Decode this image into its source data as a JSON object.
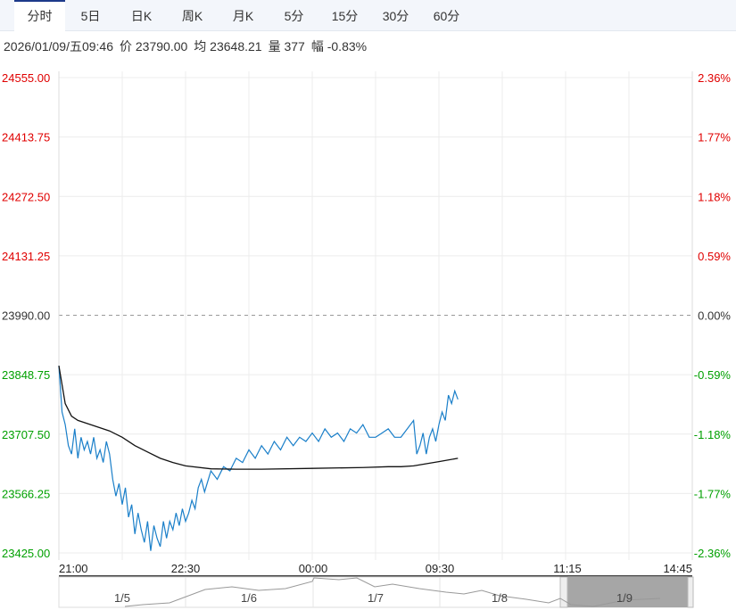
{
  "tabs": [
    "分时",
    "5日",
    "日K",
    "周K",
    "月K",
    "5分",
    "15分",
    "30分",
    "60分"
  ],
  "active_tab": 0,
  "info": {
    "datetime": "2026/01/09/五09:46",
    "price": "价 23790.00",
    "avg": "均 23648.21",
    "volume": "量 377",
    "change": "幅 -0.83%"
  },
  "colors": {
    "up": "#e00000",
    "down": "#00a000",
    "flat": "#333333",
    "price_line": "#1a7fc9",
    "avg_line": "#111111"
  },
  "chart_data": {
    "type": "line",
    "ylim": [
      23425,
      24555
    ],
    "base": 23990,
    "y_ticks": [
      "24555.00",
      "24413.75",
      "24272.50",
      "24131.25",
      "23990.00",
      "23848.75",
      "23707.50",
      "23566.25",
      "23425.00"
    ],
    "pct_ticks": [
      "2.36%",
      "1.77%",
      "1.18%",
      "0.59%",
      "0.00%",
      "-0.59%",
      "-1.18%",
      "-1.77%",
      "-2.36%"
    ],
    "x_ticks": [
      "21:00",
      "22:30",
      "00:00",
      "09:30",
      "11:15",
      "14:45"
    ],
    "x_range": [
      0,
      100
    ],
    "series": [
      {
        "name": "price",
        "x": [
          0,
          0.5,
          1,
          1.5,
          2,
          2.5,
          3,
          3.5,
          4,
          4.5,
          5,
          5.5,
          6,
          6.5,
          7,
          7.5,
          8,
          8.5,
          9,
          9.5,
          10,
          10.5,
          11,
          11.5,
          12,
          12.5,
          13,
          13.5,
          14,
          14.5,
          15,
          15.5,
          16,
          16.5,
          17,
          17.5,
          18,
          18.5,
          19,
          19.5,
          20,
          20.5,
          21,
          21.5,
          22,
          22.5,
          23,
          24,
          25,
          26,
          27,
          28,
          29,
          30,
          31,
          32,
          33,
          34,
          35,
          36,
          37,
          38,
          39,
          40,
          41,
          42,
          43,
          44,
          45,
          46,
          47,
          48,
          49,
          50,
          51,
          52,
          53,
          54,
          55,
          56,
          56.5,
          57,
          57.5,
          58,
          58.5,
          59,
          59.5,
          60,
          60.5,
          61,
          61.5,
          62,
          62.5,
          63
        ],
        "values": [
          23870,
          23760,
          23730,
          23680,
          23660,
          23720,
          23650,
          23700,
          23670,
          23690,
          23660,
          23700,
          23650,
          23670,
          23640,
          23690,
          23660,
          23600,
          23560,
          23590,
          23540,
          23580,
          23510,
          23540,
          23470,
          23520,
          23480,
          23450,
          23500,
          23430,
          23490,
          23460,
          23440,
          23500,
          23460,
          23500,
          23480,
          23520,
          23490,
          23530,
          23500,
          23520,
          23550,
          23530,
          23580,
          23600,
          23570,
          23620,
          23600,
          23630,
          23620,
          23650,
          23640,
          23670,
          23650,
          23680,
          23660,
          23690,
          23670,
          23700,
          23680,
          23700,
          23690,
          23710,
          23690,
          23720,
          23700,
          23710,
          23690,
          23720,
          23710,
          23730,
          23700,
          23700,
          23710,
          23720,
          23700,
          23700,
          23720,
          23740,
          23660,
          23680,
          23710,
          23660,
          23700,
          23720,
          23690,
          23730,
          23760,
          23740,
          23800,
          23780,
          23810,
          23790
        ]
      },
      {
        "name": "avg",
        "x": [
          0,
          1,
          2,
          3,
          5,
          8,
          10,
          12,
          14,
          16,
          18,
          20,
          24,
          28,
          32,
          40,
          48,
          52,
          54,
          56,
          60,
          63
        ],
        "values": [
          23870,
          23780,
          23750,
          23740,
          23730,
          23715,
          23700,
          23680,
          23665,
          23650,
          23640,
          23632,
          23625,
          23624,
          23624,
          23626,
          23628,
          23630,
          23630,
          23632,
          23642,
          23650
        ]
      }
    ],
    "navigator": {
      "labels": [
        "1/5",
        "1/6",
        "1/7",
        "1/8",
        "1/9"
      ]
    }
  }
}
